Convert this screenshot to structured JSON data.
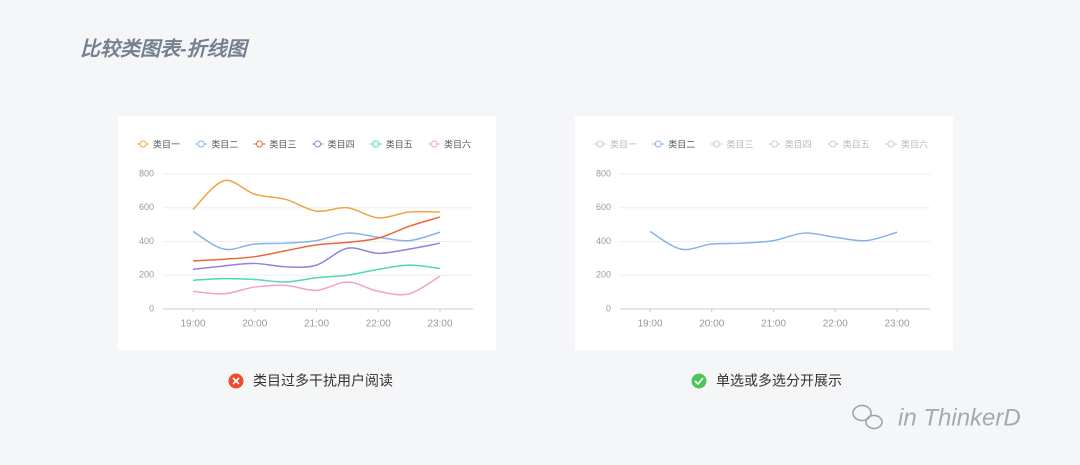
{
  "title": "比较类图表-折线图",
  "chart_data": [
    {
      "type": "line",
      "categories": [
        "19:00",
        null,
        "20:00",
        null,
        "21:00",
        null,
        "22:00",
        null,
        "23:00"
      ],
      "ylim": [
        0,
        800
      ],
      "yticks": [
        0,
        200,
        400,
        600,
        800
      ],
      "grid": true,
      "legend": "top",
      "series": [
        {
          "name": "类目一",
          "color": "#f2a445",
          "active": true,
          "values": [
            590,
            760,
            680,
            650,
            580,
            600,
            540,
            575,
            575
          ]
        },
        {
          "name": "类目二",
          "color": "#86b4e8",
          "active": true,
          "values": [
            460,
            355,
            385,
            390,
            405,
            450,
            425,
            405,
            455
          ]
        },
        {
          "name": "类目三",
          "color": "#e9683b",
          "active": true,
          "values": [
            285,
            295,
            310,
            345,
            380,
            395,
            420,
            490,
            545
          ]
        },
        {
          "name": "类目四",
          "color": "#9281e0",
          "active": true,
          "values": [
            235,
            255,
            270,
            250,
            260,
            360,
            330,
            355,
            390
          ]
        },
        {
          "name": "类目五",
          "color": "#4fd8b6",
          "active": true,
          "values": [
            170,
            180,
            175,
            160,
            185,
            200,
            235,
            260,
            240
          ]
        },
        {
          "name": "类目六",
          "color": "#f0a3c9",
          "active": true,
          "values": [
            105,
            90,
            130,
            140,
            110,
            160,
            105,
            90,
            195
          ]
        }
      ]
    },
    {
      "type": "line",
      "categories": [
        "19:00",
        null,
        "20:00",
        null,
        "21:00",
        null,
        "22:00",
        null,
        "23:00"
      ],
      "ylim": [
        0,
        800
      ],
      "yticks": [
        0,
        200,
        400,
        600,
        800
      ],
      "grid": true,
      "legend": "top",
      "series": [
        {
          "name": "类目一",
          "color": "#c8ccd2",
          "active": false
        },
        {
          "name": "类目二",
          "color": "#86b4e8",
          "active": true,
          "values": [
            460,
            355,
            385,
            390,
            405,
            450,
            425,
            405,
            455
          ]
        },
        {
          "name": "类目三",
          "color": "#c8ccd2",
          "active": false
        },
        {
          "name": "类目四",
          "color": "#c8ccd2",
          "active": false
        },
        {
          "name": "类目五",
          "color": "#c8ccd2",
          "active": false
        },
        {
          "name": "类目六",
          "color": "#c8ccd2",
          "active": false
        }
      ]
    }
  ],
  "captions": [
    "类目过多干扰用户阅读",
    "单选或多选分开展示"
  ],
  "watermark": "in ThinkerD"
}
